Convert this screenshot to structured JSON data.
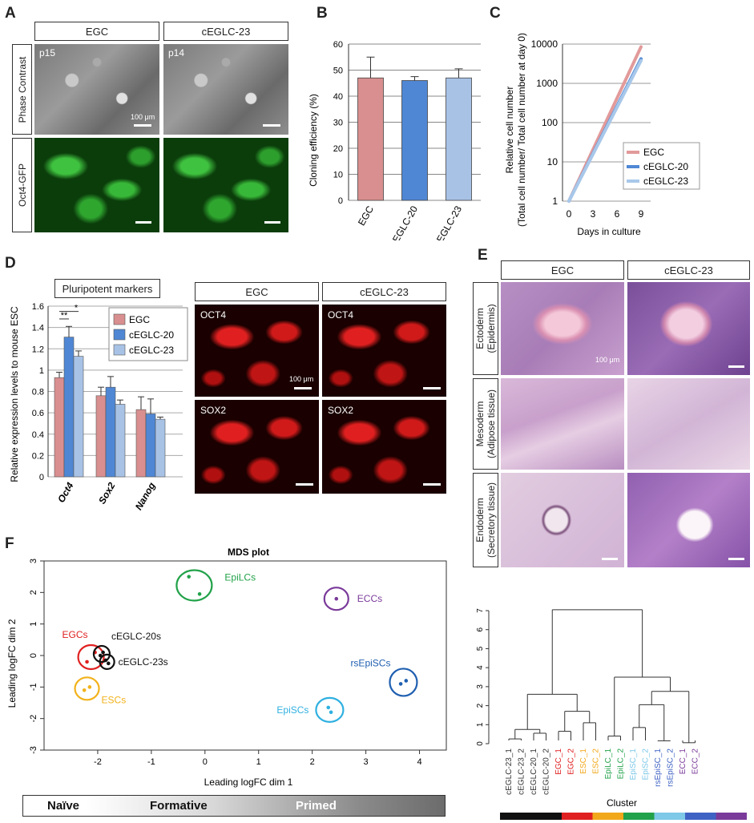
{
  "panels": {
    "A": "A",
    "B": "B",
    "C": "C",
    "D": "D",
    "E": "E",
    "F": "F"
  },
  "panelA": {
    "cols": [
      "EGC",
      "cEGLC-23"
    ],
    "rows": [
      "Phase Contrast",
      "Oct4-GFP"
    ],
    "passages": [
      "p15",
      "p14"
    ],
    "scale": "100 μm"
  },
  "panelB": {
    "chart_data": {
      "type": "bar",
      "categories": [
        "EGC",
        "cEGLC-20",
        "cEGLC-23"
      ],
      "values": [
        47,
        46,
        47
      ],
      "errors": [
        8,
        1.5,
        3.5
      ],
      "colors": [
        "#d98f8f",
        "#4f87d4",
        "#a8c2e6"
      ],
      "ylabel": "Cloning efficiency (%)",
      "ylim": [
        0,
        60
      ],
      "yticks": [
        "0",
        "10",
        "20",
        "30",
        "40",
        "50",
        "60"
      ]
    }
  },
  "panelC": {
    "chart_data": {
      "type": "line",
      "x": [
        0,
        9
      ],
      "series": [
        {
          "name": "EGC",
          "values": [
            1,
            8500
          ],
          "color": "#e29a9a"
        },
        {
          "name": "cEGLC-20",
          "values": [
            1,
            4200
          ],
          "color": "#4f87d4"
        },
        {
          "name": "cEGLC-23",
          "values": [
            1,
            3800
          ],
          "color": "#a8c8ea"
        }
      ],
      "yscale": "log",
      "ylim": [
        1,
        10000
      ],
      "yticks": [
        "1",
        "10",
        "100",
        "1000",
        "10000"
      ],
      "xticks": [
        "0",
        "3",
        "6",
        "9"
      ],
      "xlabel": "Days in culture",
      "ylabel_line1": "Relative cell number",
      "ylabel_line2": "(Total cell number/ Total cell number at day 0)"
    }
  },
  "panelD": {
    "title": "Pluripotent markers",
    "chart_data": {
      "type": "bar",
      "categories": [
        "Oct4",
        "Sox2",
        "Nanog"
      ],
      "series": [
        {
          "name": "EGC",
          "values": [
            0.93,
            0.76,
            0.63
          ],
          "errors": [
            0.05,
            0.08,
            0.12
          ],
          "color": "#d98f8f"
        },
        {
          "name": "cEGLC-20",
          "values": [
            1.31,
            0.84,
            0.59
          ],
          "errors": [
            0.1,
            0.1,
            0.14
          ],
          "color": "#4f87d4"
        },
        {
          "name": "cEGLC-23",
          "values": [
            1.13,
            0.68,
            0.54
          ],
          "errors": [
            0.05,
            0.04,
            0.02
          ],
          "color": "#a8c2e6"
        }
      ],
      "ylabel": "Relative expression levels to mouse ESC",
      "ylim": [
        0,
        1.6
      ],
      "yticks": [
        "0",
        "0.2",
        "0.4",
        "0.6",
        "0.8",
        "1",
        "1.2",
        "1.4",
        "1.6"
      ],
      "legend": "top-right",
      "sig": [
        "**",
        "*"
      ]
    },
    "imgcols": [
      "EGC",
      "cEGLC-23"
    ],
    "imglabels": [
      "OCT4",
      "OCT4",
      "SOX2",
      "SOX2"
    ],
    "scale": "100 μm"
  },
  "panelE": {
    "cols": [
      "EGC",
      "cEGLC-23"
    ],
    "rows": [
      {
        "line1": "Ectoderm",
        "line2": "(Epidermis)"
      },
      {
        "line1": "Mesoderm",
        "line2": "(Adipose tissue)"
      },
      {
        "line1": "Endoderm",
        "line2": "(Secretory tissue)"
      }
    ],
    "scale": "100 μm"
  },
  "panelF": {
    "mds": {
      "chart_data": {
        "type": "scatter",
        "title": "MDS plot",
        "xlabel": "Leading logFC dim 1",
        "ylabel": "Leading logFC dim 2",
        "xlim": [
          -3,
          4.5
        ],
        "ylim": [
          -3,
          3
        ],
        "xticks": [
          "-2",
          "-1",
          "0",
          "1",
          "2",
          "3",
          "4"
        ],
        "yticks": [
          "3",
          "2",
          "1",
          "0",
          "-1",
          "-2",
          "-3"
        ],
        "groups": [
          {
            "name": "EpiLCs",
            "color": "#22a24a",
            "points": [
              [
                -0.3,
                2.5
              ],
              [
                -0.1,
                1.95
              ]
            ]
          },
          {
            "name": "ECCs",
            "color": "#7a3a9a",
            "points": [
              [
                2.45,
                1.8
              ]
            ]
          },
          {
            "name": "EGCs",
            "color": "#e02020",
            "points": [
              [
                -2.2,
                -0.2
              ],
              [
                -2.05,
                0.1
              ]
            ]
          },
          {
            "name": "cEGLC-20s",
            "color": "#111111",
            "points": [
              [
                -1.95,
                0.0
              ],
              [
                -1.9,
                0.1
              ]
            ]
          },
          {
            "name": "cEGLC-23s",
            "color": "#111111",
            "points": [
              [
                -1.85,
                -0.15
              ],
              [
                -1.8,
                -0.25
              ]
            ]
          },
          {
            "name": "ESCs",
            "color": "#f2b21b",
            "points": [
              [
                -2.25,
                -1.1
              ],
              [
                -2.15,
                -1.0
              ]
            ]
          },
          {
            "name": "EpiSCs",
            "color": "#2fb0e0",
            "points": [
              [
                2.3,
                -1.65
              ],
              [
                2.35,
                -1.8
              ]
            ]
          },
          {
            "name": "rsEpiSCs",
            "color": "#1f5fb0",
            "points": [
              [
                3.65,
                -0.9
              ],
              [
                3.75,
                -0.8
              ]
            ]
          }
        ]
      }
    },
    "gradient": {
      "left": "Naïve",
      "mid": "Formative",
      "right": "Primed"
    },
    "dendro": {
      "chart_data": {
        "type": "dendrogram",
        "yticks": [
          "0",
          "1",
          "2",
          "3",
          "4",
          "5",
          "6",
          "7"
        ],
        "ylim": [
          0,
          7
        ],
        "leaves": [
          {
            "label": "cEGLC-23_1",
            "color": "#333333"
          },
          {
            "label": "cEGLC-23_2",
            "color": "#333333"
          },
          {
            "label": "cEGLC-20_1",
            "color": "#333333"
          },
          {
            "label": "cEGLC-20_2",
            "color": "#333333"
          },
          {
            "label": "EGC_1",
            "color": "#e02020"
          },
          {
            "label": "EGC_2",
            "color": "#e02020"
          },
          {
            "label": "ESC_1",
            "color": "#f2a81b"
          },
          {
            "label": "ESC_2",
            "color": "#f2a81b"
          },
          {
            "label": "EpiLC_1",
            "color": "#22a24a"
          },
          {
            "label": "EpiLC_2",
            "color": "#22a24a"
          },
          {
            "label": "EpiSC_1",
            "color": "#7ec8e8"
          },
          {
            "label": "EpiSC_2",
            "color": "#7ec8e8"
          },
          {
            "label": "rsEpiSC_1",
            "color": "#3e62c4"
          },
          {
            "label": "rsEpiSC_2",
            "color": "#3e62c4"
          },
          {
            "label": "ECC_1",
            "color": "#7a3a9a"
          },
          {
            "label": "ECC_2",
            "color": "#7a3a9a"
          }
        ],
        "merges": [
          [
            0,
            1,
            0.25
          ],
          [
            2,
            3,
            0.55
          ],
          [
            4,
            5,
            0.65
          ],
          [
            6,
            7,
            1.1
          ],
          [
            8,
            9,
            0.4
          ],
          [
            10,
            11,
            0.85
          ],
          [
            12,
            13,
            0.15
          ],
          [
            14,
            15,
            0.05
          ]
        ],
        "clusterlabel": "Cluster",
        "clusterbar": [
          "#111111",
          "#e02020",
          "#f2a81b",
          "#22a24a",
          "#7ec8e8",
          "#3e62c4",
          "#7a3a9a"
        ]
      }
    }
  }
}
